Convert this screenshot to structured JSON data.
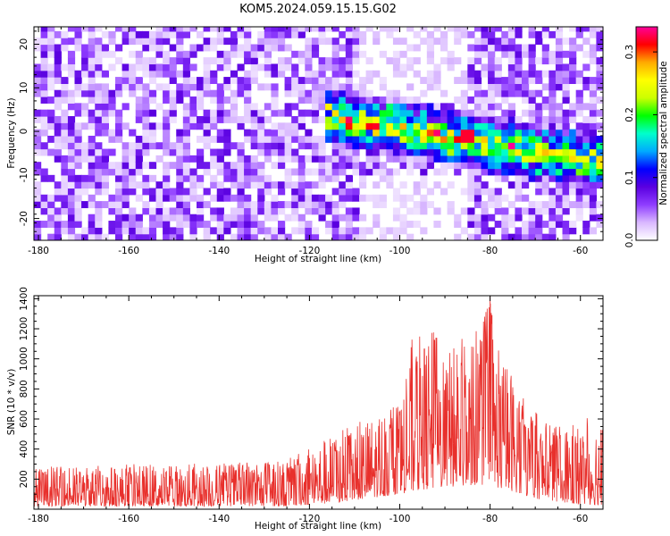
{
  "title": "KOM5.2024.059.15.15.G02",
  "colors": {
    "snr_line": "#e8302c",
    "colormap": [
      "#ffffff",
      "#d9b8ff",
      "#8f3dff",
      "#5a00e0",
      "#0000ff",
      "#00aaff",
      "#00ffcc",
      "#00ff00",
      "#ccff00",
      "#ffff00",
      "#ffaa00",
      "#ff0000",
      "#ff0099"
    ]
  },
  "chart_data": [
    {
      "type": "heatmap",
      "xlabel": "Height of straight line (km)",
      "ylabel": "Frequency (Hz)",
      "xlim": [
        -181,
        -55
      ],
      "ylim": [
        -25,
        24
      ],
      "x_ticks": [
        -180,
        -160,
        -140,
        -120,
        -100,
        -80,
        -60
      ],
      "x_tick_labels": [
        "-180",
        "-160",
        "-140",
        "-120",
        "-100",
        "-80",
        "-60"
      ],
      "y_ticks": [
        20,
        10,
        0,
        -10,
        -20
      ],
      "y_tick_labels": [
        "20",
        "10",
        "0",
        "-10",
        "-20"
      ],
      "colorbar": {
        "label": "Normalized spectral amplitude",
        "range": [
          0,
          0.34
        ],
        "ticks": [
          0.0,
          0.1,
          0.2,
          0.3
        ],
        "tick_labels": [
          "0.0",
          "0.1",
          "0.2",
          "0.3"
        ]
      },
      "intensity_features": [
        {
          "x": [
            -181,
            -122
          ],
          "y": [
            -25,
            24
          ],
          "amplitude": 0.06,
          "note": "diffuse background"
        },
        {
          "x": [
            -118,
            -55
          ],
          "y_start": 3,
          "y_end": -8,
          "amplitude": 0.28,
          "note": "descending streak"
        },
        {
          "x": [
            -86,
            -85
          ],
          "y": [
            -2,
            -1
          ],
          "amplitude": 0.32,
          "note": "peak"
        }
      ]
    },
    {
      "type": "line",
      "xlabel": "Height of straight line (km)",
      "ylabel": "SNR (10 * v/v)",
      "xlim": [
        -181,
        -55
      ],
      "ylim": [
        0,
        1420
      ],
      "x_ticks": [
        -180,
        -160,
        -140,
        -120,
        -100,
        -80,
        -60
      ],
      "x_tick_labels": [
        "-180",
        "-160",
        "-140",
        "-120",
        "-100",
        "-80",
        "-60"
      ],
      "y_ticks": [
        200,
        400,
        600,
        800,
        1000,
        1200,
        1400
      ],
      "y_tick_labels": [
        "200",
        "400",
        "600",
        "800",
        "1000",
        "1200",
        "1400"
      ],
      "series": [
        {
          "color": "#e8302c",
          "envelope_x": [
            -181,
            -170,
            -160,
            -150,
            -140,
            -130,
            -125,
            -120,
            -115,
            -110,
            -105,
            -100,
            -97,
            -95,
            -92,
            -90,
            -87,
            -85,
            -82,
            -80,
            -78,
            -75,
            -72,
            -70,
            -65,
            -62,
            -60,
            -58,
            -55
          ],
          "envelope_max": [
            280,
            290,
            300,
            300,
            310,
            320,
            330,
            430,
            500,
            560,
            650,
            700,
            1180,
            1150,
            1200,
            1000,
            1250,
            1000,
            1300,
            1420,
            1050,
            950,
            700,
            650,
            550,
            600,
            550,
            650,
            600
          ],
          "envelope_min": [
            20,
            20,
            20,
            20,
            20,
            20,
            20,
            30,
            40,
            60,
            80,
            100,
            120,
            130,
            140,
            150,
            150,
            160,
            160,
            170,
            140,
            120,
            90,
            70,
            50,
            40,
            30,
            30,
            30
          ]
        }
      ]
    }
  ]
}
